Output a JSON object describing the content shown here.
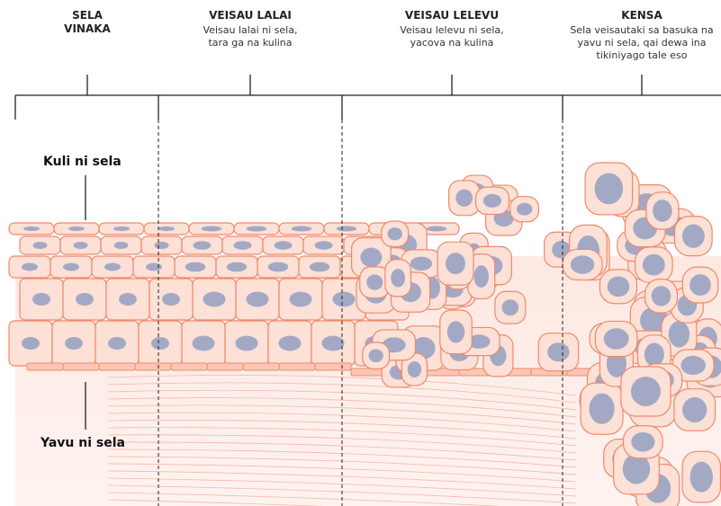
{
  "stages": [
    {
      "title": "SELA VINAKA",
      "description": null
    },
    {
      "title": "VEISAU LALAI",
      "description": "Veisau lalai ni sela, tara ga na kulina"
    },
    {
      "title": "VEISAU LELEVU",
      "description": "Veisau lelevu ni sela, yacova na kulina"
    },
    {
      "title": "KENSA",
      "description": "Sela veisautaki sa basuka na yavu ni sela, qai dewa ina tikiniyago tale eso"
    }
  ],
  "labels": {
    "skin": "Kuli ni sela",
    "base": "Yavu ni sela"
  }
}
